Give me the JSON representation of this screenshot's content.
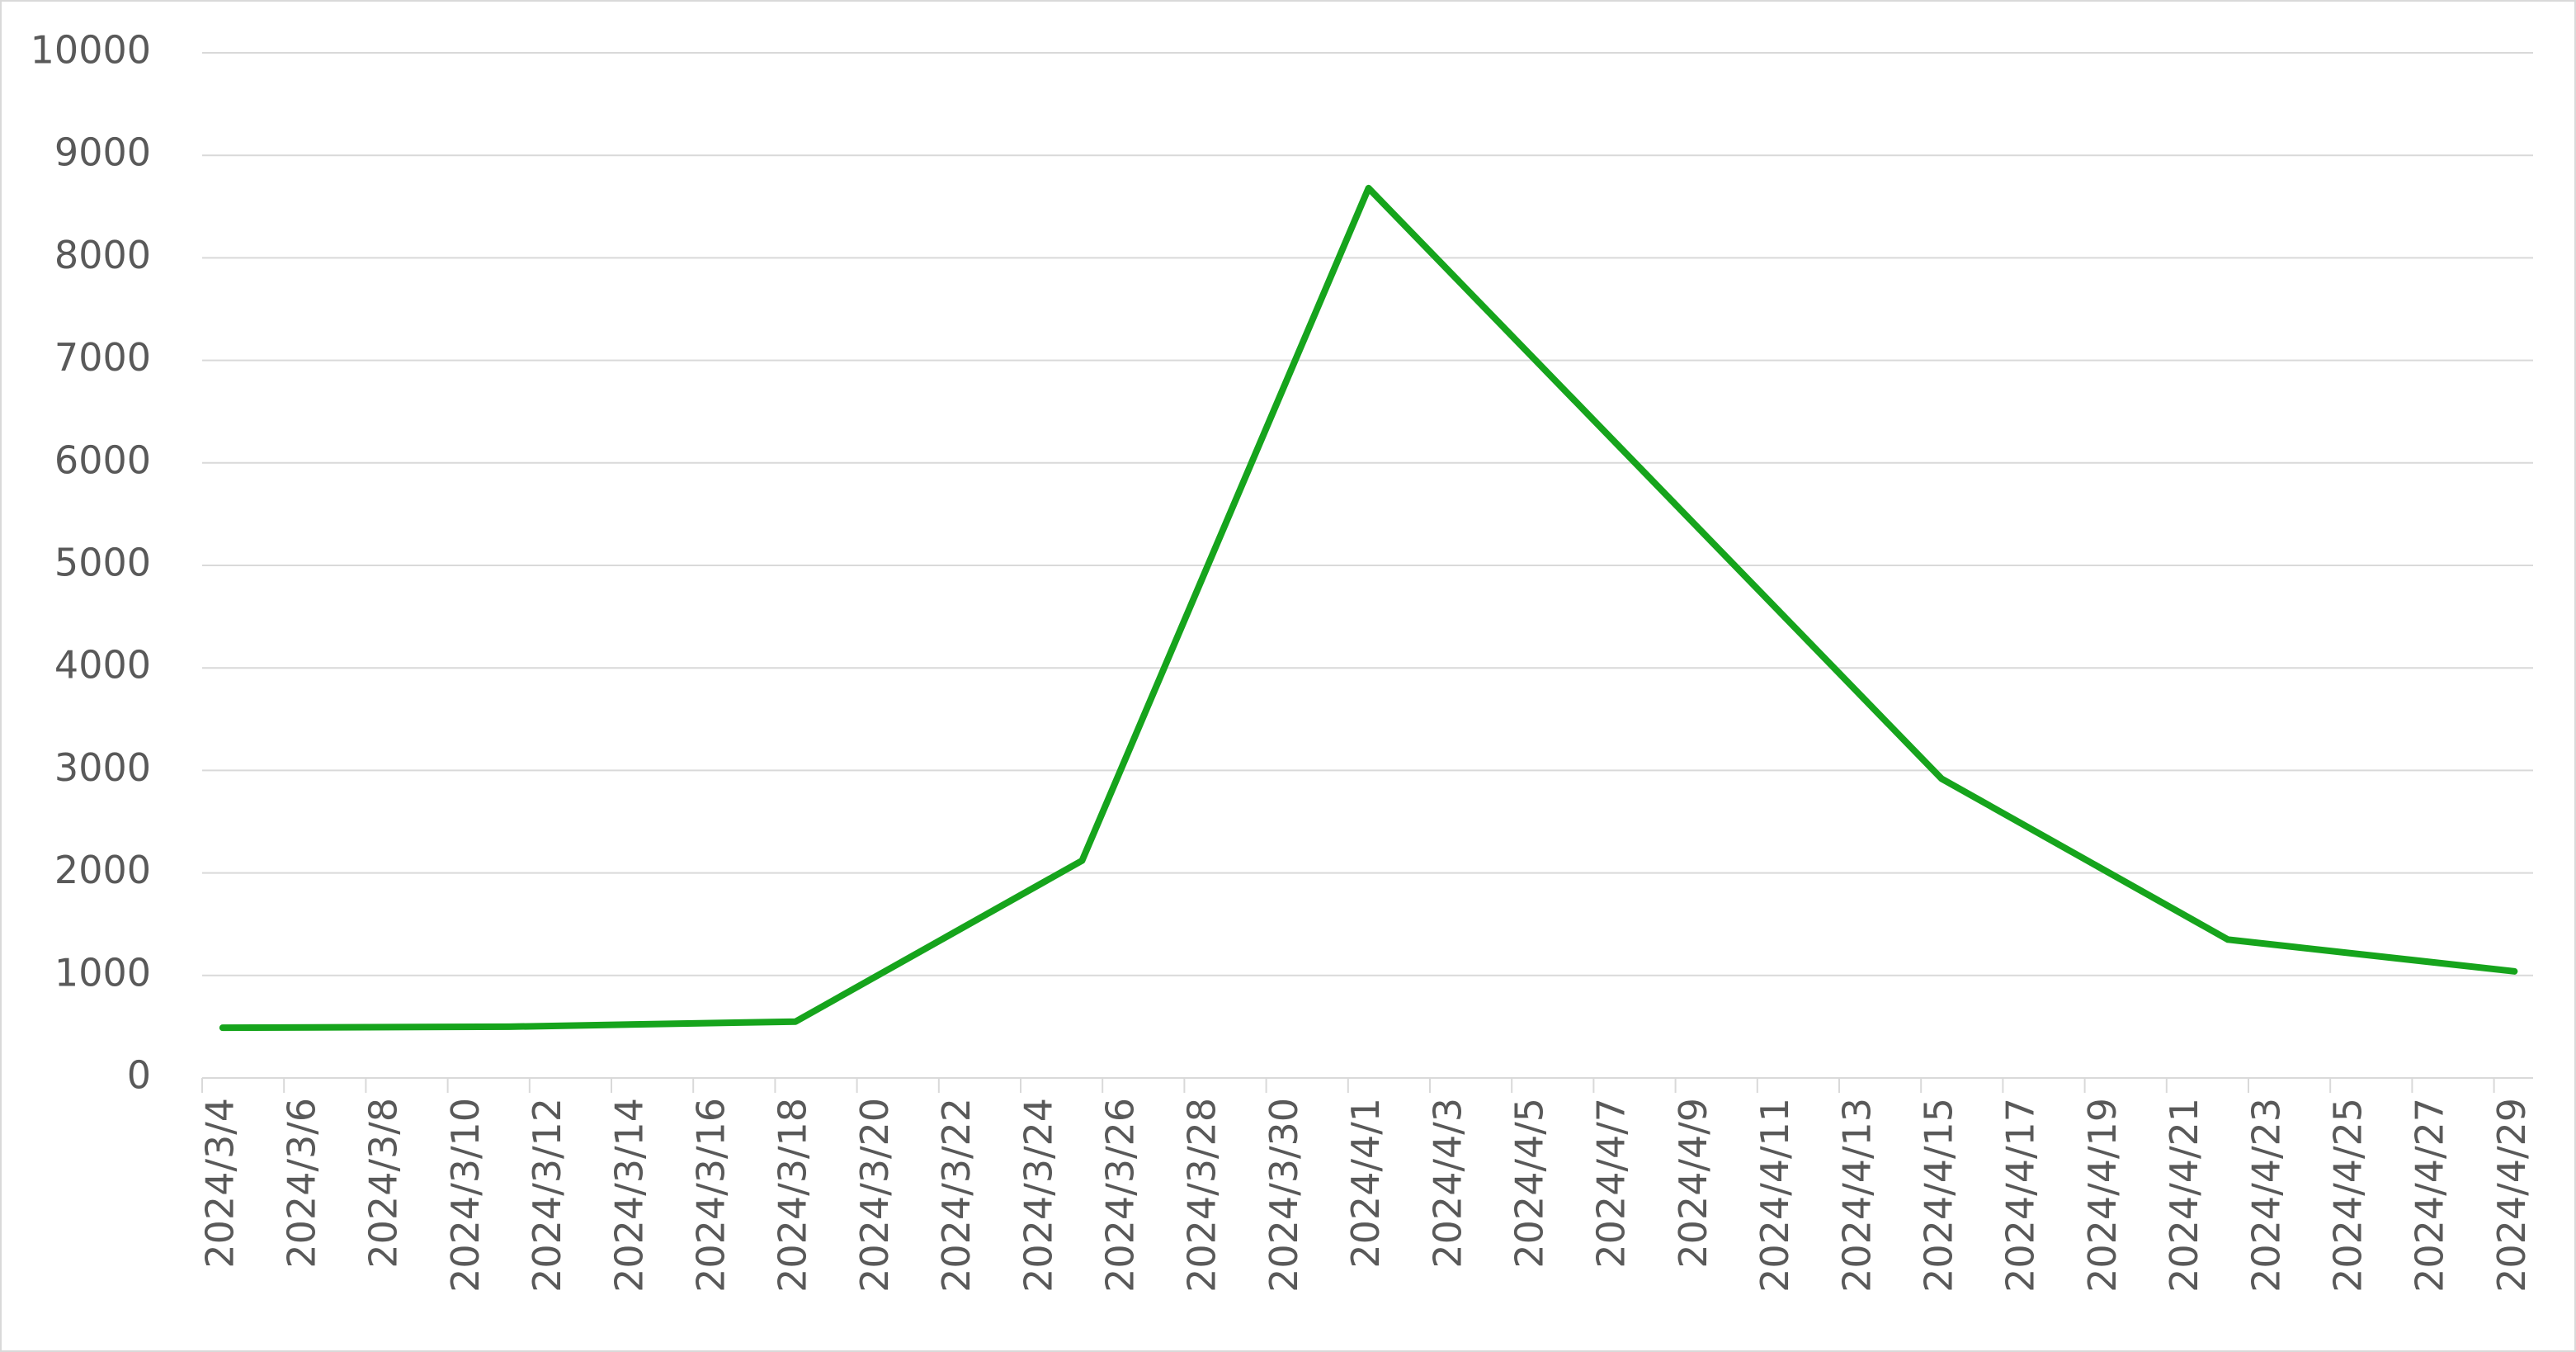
{
  "chart_data": {
    "type": "line",
    "x": [
      "2024/3/4",
      "2024/3/11",
      "2024/3/18",
      "2024/3/25",
      "2024/4/1",
      "2024/4/15",
      "2024/4/22",
      "2024/4/29"
    ],
    "series": [
      {
        "color": "#16a41c",
        "values": [
          490,
          500,
          550,
          2120,
          8680,
          2920,
          1350,
          1040
        ]
      }
    ],
    "xlim": [
      "2024/3/4",
      "2024/4/29"
    ],
    "xticks": [
      "2024/3/4",
      "2024/3/6",
      "2024/3/8",
      "2024/3/10",
      "2024/3/12",
      "2024/3/14",
      "2024/3/16",
      "2024/3/18",
      "2024/3/20",
      "2024/3/22",
      "2024/3/24",
      "2024/3/26",
      "2024/3/28",
      "2024/3/30",
      "2024/4/1",
      "2024/4/3",
      "2024/4/5",
      "2024/4/7",
      "2024/4/9",
      "2024/4/11",
      "2024/4/13",
      "2024/4/15",
      "2024/4/17",
      "2024/4/19",
      "2024/4/21",
      "2024/4/23",
      "2024/4/25",
      "2024/4/27",
      "2024/4/29"
    ],
    "ylim": [
      0,
      10000
    ],
    "yticks": [
      0,
      1000,
      2000,
      3000,
      4000,
      5000,
      6000,
      7000,
      8000,
      9000,
      10000
    ],
    "grid": true
  }
}
